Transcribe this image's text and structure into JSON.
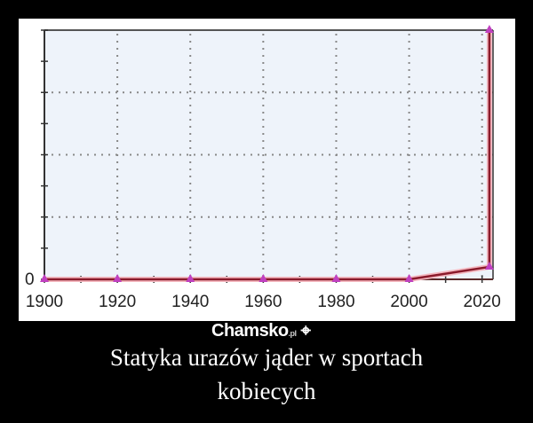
{
  "caption": {
    "line1": "Statyka urazów jąder w sportach",
    "line2": "kobiecych"
  },
  "watermark": {
    "name": "Chamsko",
    "suffix": ".pl"
  },
  "chart_data": {
    "type": "line",
    "title": "",
    "xlabel": "",
    "ylabel": "",
    "x_ticks": [
      "1900",
      "1920",
      "1940",
      "1960",
      "1980",
      "2000",
      "2020"
    ],
    "y_ticks": [
      "0"
    ],
    "xlim": [
      1900,
      2023
    ],
    "ylim": [
      0,
      100
    ],
    "grid": true,
    "series": [
      {
        "x": [
          1900,
          1920,
          1940,
          1960,
          1980,
          2000,
          2022,
          2022
        ],
        "y": [
          0,
          0,
          0,
          0,
          0,
          0,
          5,
          100
        ],
        "color": "#8b1a2b",
        "marker_color": "#c040c0"
      }
    ]
  }
}
